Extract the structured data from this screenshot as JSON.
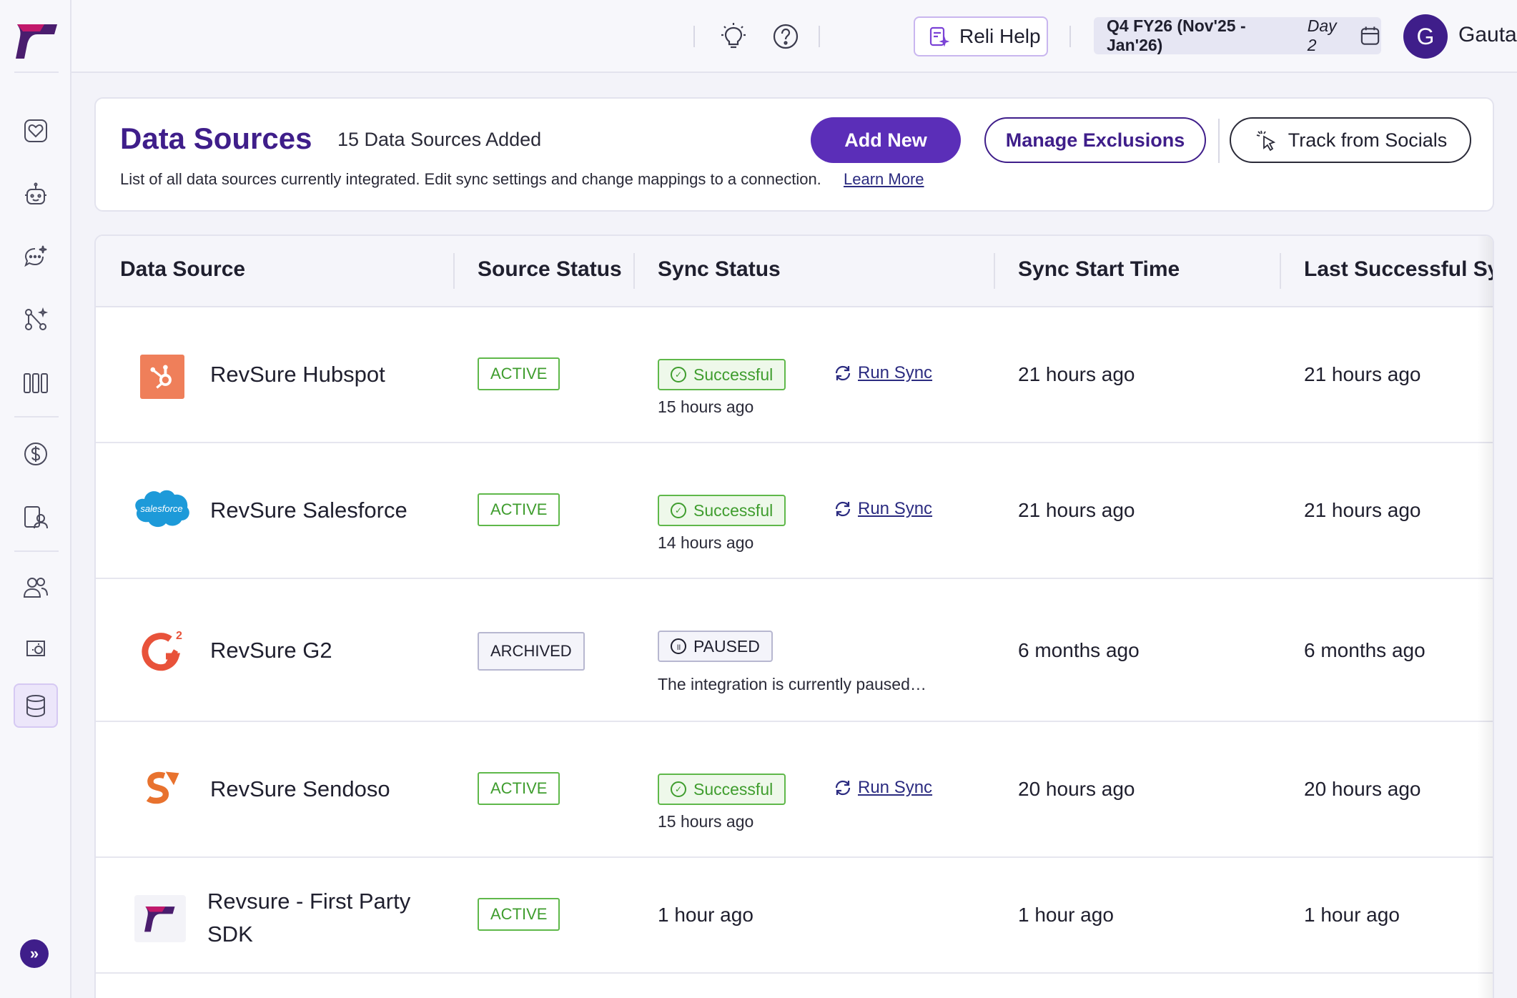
{
  "topbar": {
    "reli_help": "Reli Help",
    "fy_main": "Q4 FY26 (Nov'25 - Jan'26)",
    "fy_day": "Day 2",
    "avatar_initial": "G",
    "user_name": "Gautam"
  },
  "sidebar": {
    "items": [
      "heart-icon",
      "bot-icon",
      "chat-sparkle-icon",
      "flow-icon",
      "columns-icon",
      "dollar-icon",
      "accounts-icon",
      "people-icon",
      "settings-icon",
      "database-icon"
    ],
    "active": "database-icon",
    "expand_label": "»"
  },
  "header": {
    "title": "Data Sources",
    "count": "15 Data Sources Added",
    "subtitle": "List of all data sources currently integrated. Edit sync settings and change mappings to a connection.",
    "learn_more": "Learn More",
    "add_new": "Add New",
    "manage_exclusions": "Manage Exclusions",
    "track_socials": "Track from Socials"
  },
  "table": {
    "columns": [
      "Data Source",
      "Source Status",
      "Sync Status",
      "Sync Start Time",
      "Last Successful Syn"
    ],
    "run_sync_label": "Run Sync",
    "rows": [
      {
        "name": "RevSure Hubspot",
        "logo": "hubspot-logo",
        "status": "ACTIVE",
        "sync": "Successful",
        "sync_ago": "15 hours ago",
        "start": "21 hours ago",
        "last": "21 hours ago"
      },
      {
        "name": "RevSure Salesforce",
        "logo": "salesforce-logo",
        "logo_text": "salesforce",
        "status": "ACTIVE",
        "sync": "Successful",
        "sync_ago": "14 hours ago",
        "start": "21 hours ago",
        "last": "21 hours ago"
      },
      {
        "name": "RevSure G2",
        "logo": "g2-logo",
        "status": "ARCHIVED",
        "sync": "PAUSED",
        "paused_msg": "The integration is currently paused…",
        "start": "6 months ago",
        "last": "6 months ago"
      },
      {
        "name": "RevSure Sendoso",
        "logo": "sendoso-logo",
        "status": "ACTIVE",
        "sync": "Successful",
        "sync_ago": "15 hours ago",
        "start": "20 hours ago",
        "last": "20 hours ago"
      },
      {
        "name_line1": "Revsure - First Party",
        "name_line2": "SDK",
        "logo": "revsure-logo",
        "status": "ACTIVE",
        "sync_text": "1 hour ago",
        "start": "1 hour ago",
        "last": "1 hour ago"
      }
    ]
  },
  "colors": {
    "brand": "#3f1e8a",
    "primary_button": "#5b2eb8",
    "success": "#3f9d2e"
  }
}
